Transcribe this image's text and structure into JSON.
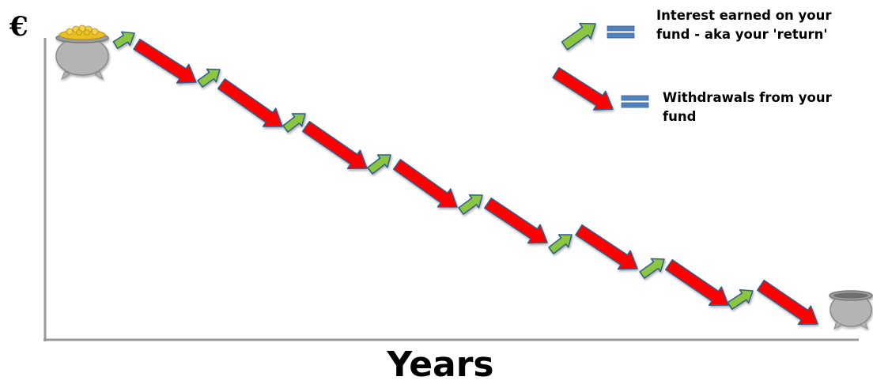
{
  "axes": {
    "y_label": "€",
    "x_label": "Years"
  },
  "legend": {
    "interest": {
      "line1": "Interest earned on your",
      "line2": "fund - aka your 'return'",
      "color": "#8CC63F"
    },
    "withdrawals": {
      "line1": "Withdrawals from your",
      "line2": "fund",
      "color": "#FF0000"
    },
    "equals_color": "#4F81BD"
  },
  "colors": {
    "arrow_outline": "#2E5E8C",
    "axis": "#9a9a9a",
    "pot": "#b4b4b4",
    "coins": "#E8C020"
  },
  "icons": {
    "full_pot": "pot-of-gold-icon",
    "empty_pot": "empty-pot-icon"
  }
}
